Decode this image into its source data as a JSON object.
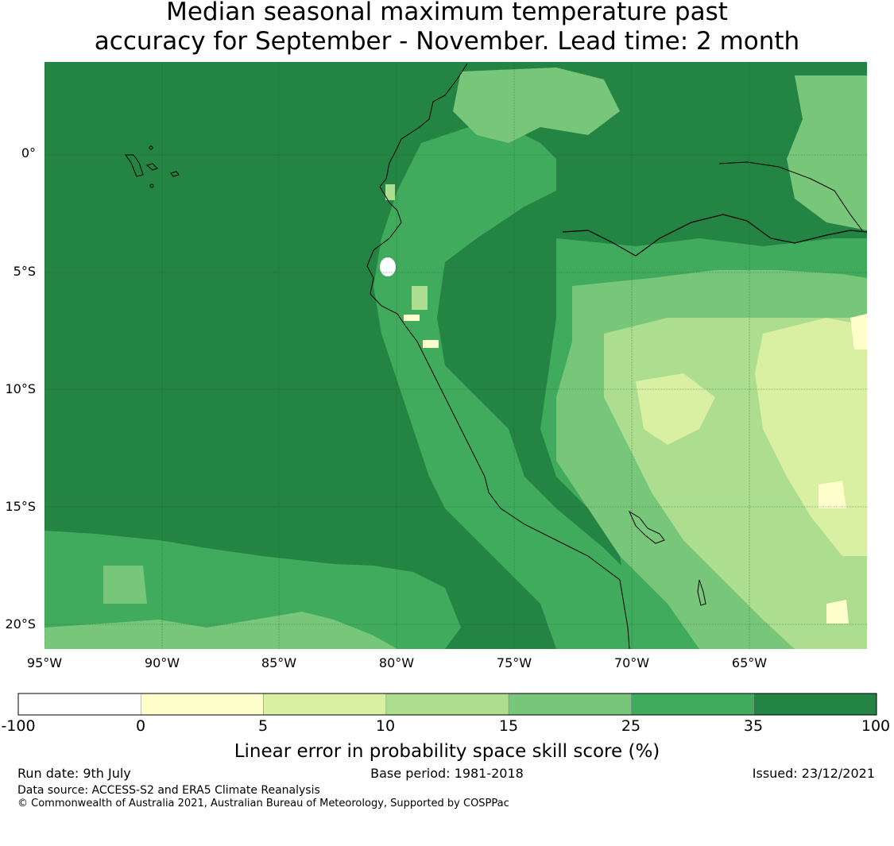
{
  "title": {
    "line1": "Median seasonal maximum temperature past",
    "line2": "accuracy for September - November. Lead time: 2 month"
  },
  "map": {
    "lat_labels": [
      "0°",
      "5°S",
      "10°S",
      "15°S",
      "20°S"
    ],
    "lon_labels": [
      "95°W",
      "90°W",
      "85°W",
      "80°W",
      "75°W",
      "70°W",
      "65°W"
    ],
    "extent": {
      "lon_min": -95,
      "lon_max": -60,
      "lat_min": -21,
      "lat_max": 4
    }
  },
  "colorbar": {
    "ticks": [
      "-100",
      "0",
      "5",
      "10",
      "15",
      "25",
      "35",
      "100"
    ],
    "colors": [
      "#ffffff",
      "#ffffcc",
      "#d9f0a3",
      "#addd8e",
      "#78c679",
      "#41ab5d",
      "#238443"
    ],
    "label": "Linear error in probability space skill score (%)"
  },
  "footer": {
    "run_date": "Run date: 9th July",
    "base_period": "Base period: 1981-2018",
    "issued": "Issued: 23/12/2021",
    "data_source": "Data source: ACCESS-S2 and ERA5 Climate Reanalysis",
    "copyright": "© Commonwealth of Australia 2021, Australian Bureau of Meteorology, Supported by COSPPac"
  }
}
